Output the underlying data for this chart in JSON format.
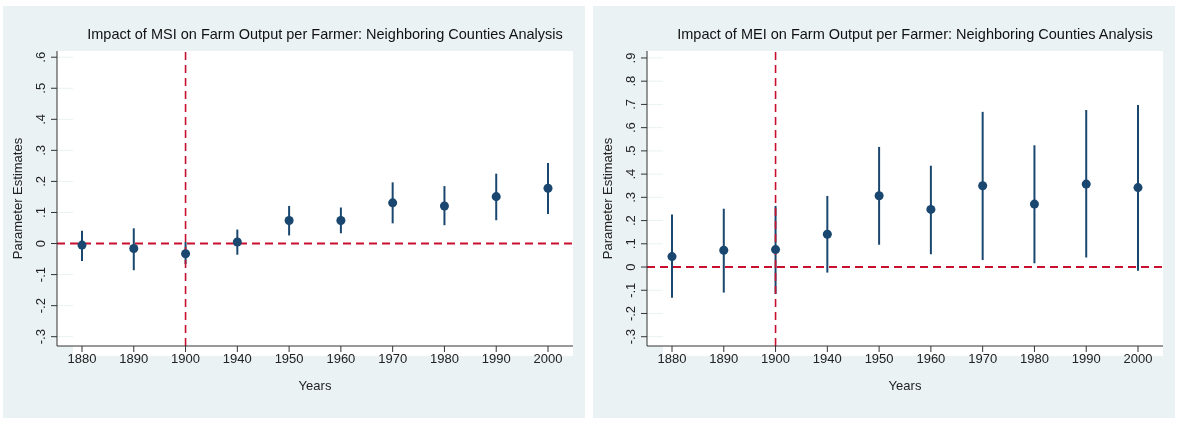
{
  "chart_data": [
    {
      "type": "scatter",
      "title": "Impact of MSI on Farm Output per Farmer: Neighboring Counties Analysis",
      "xlabel": "Years",
      "ylabel": "Parameter Estimates",
      "categories": [
        "1880",
        "1890",
        "1900",
        "1940",
        "1950",
        "1960",
        "1970",
        "1980",
        "1990",
        "2000"
      ],
      "series": [
        {
          "color": "#1a476f",
          "values": [
            -0.005,
            -0.016,
            -0.033,
            0.005,
            0.074,
            0.074,
            0.131,
            0.121,
            0.151,
            0.178
          ],
          "errors": [
            [
              -0.056,
              0.041
            ],
            [
              -0.086,
              0.049
            ],
            [
              -0.066,
              0.005
            ],
            [
              -0.036,
              0.045
            ],
            [
              0.026,
              0.121
            ],
            [
              0.033,
              0.116
            ],
            [
              0.065,
              0.197
            ],
            [
              0.059,
              0.185
            ],
            [
              0.075,
              0.225
            ],
            [
              0.095,
              0.259
            ]
          ]
        }
      ],
      "ylim": [
        -0.33,
        0.62
      ],
      "yticks": [
        {
          "value": -0.3,
          "label": "-.3"
        },
        {
          "value": -0.2,
          "label": "-.2"
        },
        {
          "value": -0.1,
          "label": "-.1"
        },
        0,
        {
          "value": 0.1,
          "label": ".1"
        },
        {
          "value": 0.2,
          "label": ".2"
        },
        {
          "value": 0.3,
          "label": ".3"
        },
        {
          "value": 0.4,
          "label": ".4"
        },
        {
          "value": 0.5,
          "label": ".5"
        },
        {
          "value": 0.6,
          "label": ".6"
        }
      ],
      "ref_lines": [
        {
          "axis": "y",
          "value": 0,
          "color": "#c8102e",
          "line_style": "dashed"
        },
        {
          "axis": "x",
          "value": "1900",
          "color": "#c8102e",
          "line_style": "dashed"
        }
      ],
      "grid": "y",
      "marker": "circle",
      "legend": false
    },
    {
      "type": "scatter",
      "title": "Impact of MEI on Farm Output per Farmer: Neighboring Counties Analysis",
      "xlabel": "Years",
      "ylabel": "Parameter Estimates",
      "categories": [
        "1880",
        "1890",
        "1900",
        "1940",
        "1950",
        "1960",
        "1970",
        "1980",
        "1990",
        "2000"
      ],
      "series": [
        {
          "color": "#1a476f",
          "values": [
            0.045,
            0.072,
            0.075,
            0.141,
            0.307,
            0.248,
            0.35,
            0.271,
            0.357,
            0.342
          ],
          "errors": [
            [
              -0.132,
              0.226
            ],
            [
              -0.11,
              0.251
            ],
            [
              -0.116,
              0.263
            ],
            [
              -0.024,
              0.306
            ],
            [
              0.096,
              0.517
            ],
            [
              0.055,
              0.436
            ],
            [
              0.03,
              0.668
            ],
            [
              0.016,
              0.524
            ],
            [
              0.041,
              0.676
            ],
            [
              -0.016,
              0.697
            ]
          ]
        }
      ],
      "ylim": [
        -0.34,
        0.93
      ],
      "yticks": [
        {
          "value": -0.3,
          "label": "-.3"
        },
        {
          "value": -0.2,
          "label": "-.2"
        },
        {
          "value": -0.1,
          "label": "-.1"
        },
        0,
        {
          "value": 0.1,
          "label": ".1"
        },
        {
          "value": 0.2,
          "label": ".2"
        },
        {
          "value": 0.3,
          "label": ".3"
        },
        {
          "value": 0.4,
          "label": ".4"
        },
        {
          "value": 0.5,
          "label": ".5"
        },
        {
          "value": 0.6,
          "label": ".6"
        },
        {
          "value": 0.7,
          "label": ".7"
        },
        {
          "value": 0.8,
          "label": ".8"
        },
        {
          "value": 0.9,
          "label": ".9"
        }
      ],
      "ref_lines": [
        {
          "axis": "y",
          "value": 0,
          "color": "#c8102e",
          "line_style": "dashed"
        },
        {
          "axis": "x",
          "value": "1900",
          "color": "#c8102e",
          "line_style": "dashed"
        }
      ],
      "grid": "y",
      "marker": "circle",
      "legend": false
    }
  ]
}
